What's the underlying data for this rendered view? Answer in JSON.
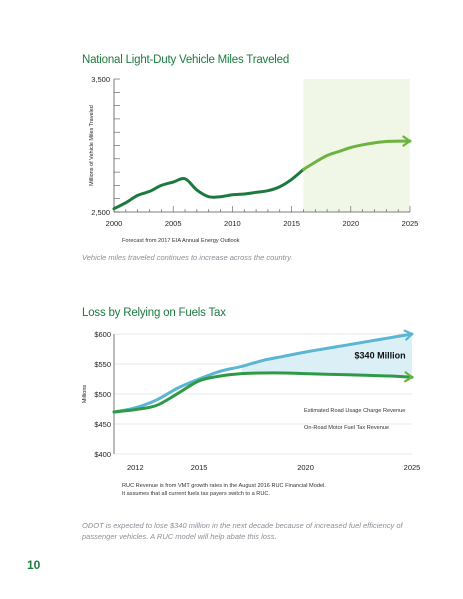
{
  "page_number": "10",
  "chart_data": [
    {
      "type": "line",
      "title": "National Light-Duty Vehicle Miles Traveled",
      "ylabel": "Millions of Vehicle Miles Traveled",
      "ylim": [
        2500,
        3500
      ],
      "xlim": [
        2000,
        2025
      ],
      "y_ticks": [
        "3,500",
        "2,500"
      ],
      "x_ticks": [
        "2000",
        "2005",
        "2010",
        "2015",
        "2020",
        "2025"
      ],
      "note": "Forecast from 2017 EIA Annual Energy Outlook",
      "caption": "Vehicle miles traveled continues to increase across the country.",
      "forecast_start": 2016,
      "series": [
        {
          "color": "#1d7a3f",
          "x": [
            2000,
            2001,
            2002,
            2003,
            2004,
            2005,
            2006,
            2007,
            2008,
            2009,
            2010,
            2011,
            2012,
            2013,
            2014,
            2015,
            2016
          ],
          "y": [
            2525,
            2570,
            2625,
            2655,
            2700,
            2725,
            2750,
            2665,
            2615,
            2615,
            2630,
            2635,
            2648,
            2660,
            2690,
            2745,
            2820
          ]
        },
        {
          "color": "#6db33f",
          "x": [
            2016,
            2017,
            2018,
            2019,
            2020,
            2021,
            2022,
            2023,
            2024,
            2025
          ],
          "y": [
            2820,
            2875,
            2925,
            2955,
            2985,
            3005,
            3020,
            3030,
            3033,
            3033
          ]
        }
      ]
    },
    {
      "type": "line",
      "title": "Loss by Relying on Fuels Tax",
      "ylabel": "Millions",
      "ylim": [
        400,
        600
      ],
      "xlim": [
        2011,
        2025
      ],
      "y_ticks": [
        "$600",
        "$550",
        "$500",
        "$450",
        "$400"
      ],
      "x_ticks": [
        "2012",
        "2015",
        "2020",
        "2025"
      ],
      "annotation": "$340 Million",
      "note_lines": [
        "RUC Revenue is from VMT growth rates in the August 2016 RUC Financial Model.",
        "It assumes that all current fuels tax payers switch to a RUC."
      ],
      "caption": "ODOT is expected to lose $340 million in the next decade because of increased fuel efficiency of passenger vehicles. A RUC model will help abate this loss.",
      "series": [
        {
          "name": "Estimated Road Usage Charge Revenue",
          "color": "#5bb5d5",
          "x": [
            2011,
            2012,
            2013,
            2014,
            2015,
            2016,
            2017,
            2018,
            2019,
            2020,
            2021,
            2022,
            2023,
            2024,
            2025
          ],
          "y": [
            470,
            477,
            490,
            510,
            525,
            538,
            546,
            556,
            563,
            570,
            576,
            582,
            588,
            594,
            600
          ]
        },
        {
          "name": "On-Road Motor Fuel Tax Revenue",
          "color": "#1d7a3f",
          "x": [
            2011,
            2012,
            2013,
            2014,
            2015,
            2016,
            2017,
            2018,
            2019,
            2020,
            2021,
            2022,
            2023,
            2024,
            2025
          ],
          "y": [
            470,
            474,
            481,
            501,
            522,
            530,
            534,
            535,
            535,
            534,
            533,
            532,
            531,
            530,
            528
          ]
        }
      ]
    }
  ]
}
